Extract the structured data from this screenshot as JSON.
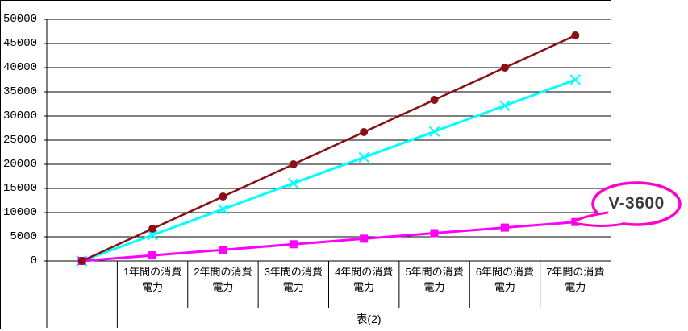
{
  "chart_data": {
    "type": "line",
    "title": "",
    "xlabel": "",
    "ylabel": "",
    "caption": "表(2)",
    "grid": "horizontal",
    "legend": "none",
    "ylim": [
      0,
      50000
    ],
    "ytick_step": 5000,
    "ytick_labels": [
      "0",
      "5000",
      "10000",
      "15000",
      "20000",
      "25000",
      "30000",
      "35000",
      "40000",
      "45000",
      "50000"
    ],
    "categories": [
      "",
      "1年間の消費電力",
      "2年間の消費電力",
      "3年間の消費電力",
      "4年間の消費電力",
      "5年間の消費電力",
      "6年間の消費電力",
      "7年間の消費電力"
    ],
    "series": [
      {
        "name": "",
        "color": "#871114",
        "marker": "circle",
        "values": [
          0,
          6667,
          13333,
          20000,
          26667,
          33333,
          40000,
          46667
        ]
      },
      {
        "name": "",
        "color": "#00ffff",
        "marker": "x",
        "values": [
          0,
          5357,
          10714,
          16071,
          21429,
          26786,
          32143,
          37500
        ]
      },
      {
        "name": "V-3600",
        "color": "#ff00ff",
        "marker": "square",
        "values": [
          0,
          1150,
          2300,
          3450,
          4600,
          5750,
          6900,
          8050
        ]
      }
    ],
    "axis_color": "#000000",
    "gridline_color": "#000000"
  },
  "callout": {
    "label": "V-3600",
    "border_color": "#ff00cc",
    "fill_color": "#ffffff",
    "text_color": "#3b3b3b"
  }
}
